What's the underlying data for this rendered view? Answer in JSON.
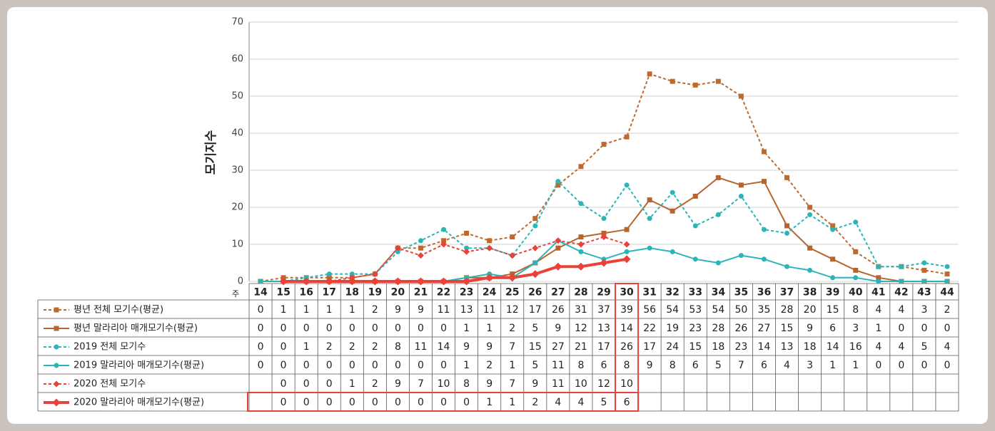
{
  "chart_data": {
    "type": "line",
    "y_label": "모기지수",
    "x_label": "주",
    "categories": [
      "14",
      "15",
      "16",
      "17",
      "18",
      "19",
      "20",
      "21",
      "22",
      "23",
      "24",
      "25",
      "26",
      "27",
      "28",
      "29",
      "30",
      "31",
      "32",
      "33",
      "34",
      "35",
      "36",
      "37",
      "38",
      "39",
      "40",
      "41",
      "42",
      "43",
      "44"
    ],
    "ylim": [
      0,
      70
    ],
    "yticks": [
      0,
      10,
      20,
      30,
      40,
      50,
      60,
      70
    ],
    "grid": true,
    "highlight_category": 16,
    "highlight_series": 5,
    "series": [
      {
        "name": "평년 전체 모기수(평균)",
        "color": "#c0692c",
        "style": "dashed",
        "marker": "square",
        "values": [
          0,
          1,
          1,
          1,
          1,
          2,
          9,
          9,
          11,
          13,
          11,
          12,
          17,
          26,
          31,
          37,
          39,
          56,
          54,
          53,
          54,
          50,
          35,
          28,
          20,
          15,
          8,
          4,
          4,
          3,
          2
        ]
      },
      {
        "name": "평년 말라리아 매개모기수(평균)",
        "color": "#b8642c",
        "style": "solid",
        "marker": "square",
        "values": [
          0,
          0,
          0,
          0,
          0,
          0,
          0,
          0,
          0,
          1,
          1,
          2,
          5,
          9,
          12,
          13,
          14,
          22,
          19,
          23,
          28,
          26,
          27,
          15,
          9,
          6,
          3,
          1,
          0,
          0,
          0
        ]
      },
      {
        "name": "2019 전체 모기수",
        "color": "#2bb5b9",
        "style": "dashed",
        "marker": "circle",
        "values": [
          0,
          0,
          1,
          2,
          2,
          2,
          8,
          11,
          14,
          9,
          9,
          7,
          15,
          27,
          21,
          17,
          26,
          17,
          24,
          15,
          18,
          23,
          14,
          13,
          18,
          14,
          16,
          4,
          4,
          5,
          4
        ]
      },
      {
        "name": "2019 말라리아 매개모기수(평균)",
        "color": "#2bb5b9",
        "style": "solid",
        "marker": "circle",
        "values": [
          0,
          0,
          0,
          0,
          0,
          0,
          0,
          0,
          0,
          1,
          2,
          1,
          5,
          11,
          8,
          6,
          8,
          9,
          8,
          6,
          5,
          7,
          6,
          4,
          3,
          1,
          1,
          0,
          0,
          0,
          0
        ]
      },
      {
        "name": "2020 전체 모기수",
        "color": "#e8433a",
        "style": "dashed",
        "marker": "diamond",
        "values": [
          null,
          0,
          0,
          0,
          1,
          2,
          9,
          7,
          10,
          8,
          9,
          7,
          9,
          11,
          10,
          12,
          10,
          null,
          null,
          null,
          null,
          null,
          null,
          null,
          null,
          null,
          null,
          null,
          null,
          null,
          null
        ]
      },
      {
        "name": "2020 말라리아 매개모기수(평균)",
        "color": "#e8433a",
        "style": "thick",
        "marker": "diamond",
        "values": [
          null,
          0,
          0,
          0,
          0,
          0,
          0,
          0,
          0,
          0,
          1,
          1,
          2,
          4,
          4,
          5,
          6,
          null,
          null,
          null,
          null,
          null,
          null,
          null,
          null,
          null,
          null,
          null,
          null,
          null,
          null
        ]
      }
    ]
  }
}
